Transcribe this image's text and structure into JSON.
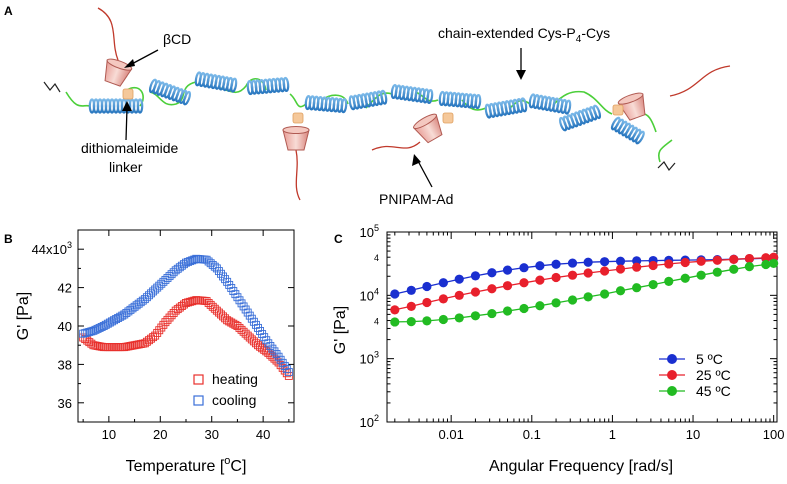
{
  "panel_a": {
    "letter": "A",
    "labels": {
      "bcd": "βCD",
      "chain_main": "chain-extended Cys-P",
      "chain_sub": "4",
      "chain_tail": "-Cys",
      "linker_1": "dithiomaleimide",
      "linker_2": "linker",
      "pnipam": "PNIPAM-Ad"
    }
  },
  "chart_data": [
    {
      "panel": "B",
      "type": "scatter",
      "title": "",
      "xlabel": "Temperature [",
      "xlabel_sup": "o",
      "xlabel_tail": "C]",
      "ylabel": "G' [Pa]",
      "xlim": [
        4,
        46
      ],
      "ylim": [
        35,
        45
      ],
      "x_ticks": [
        10,
        20,
        30,
        40
      ],
      "y_ticks": [
        {
          "v": 36,
          "label": "36"
        },
        {
          "v": 38,
          "label": "38"
        },
        {
          "v": 40,
          "label": "40"
        },
        {
          "v": 42,
          "label": "42"
        }
      ],
      "y_top_tick": {
        "v": 44,
        "label": "44x10",
        "sup": "3"
      },
      "legend_position": "bottom-right",
      "series": [
        {
          "name": "heating",
          "color": "#e8302c",
          "marker": "open-square",
          "x": [
            5,
            7,
            9,
            11,
            13,
            15,
            17,
            19,
            21,
            23,
            25,
            27,
            29,
            31,
            33,
            35,
            37,
            39,
            41,
            43,
            45
          ],
          "y": [
            39.4,
            39.0,
            38.9,
            38.9,
            38.9,
            39.0,
            39.1,
            39.5,
            40.2,
            40.8,
            41.2,
            41.35,
            41.3,
            40.8,
            40.3,
            40.0,
            39.5,
            39.0,
            38.6,
            38.1,
            37.4
          ]
        },
        {
          "name": "cooling",
          "color": "#3a6fd8",
          "marker": "open-square",
          "x": [
            5,
            7,
            9,
            11,
            13,
            15,
            17,
            19,
            21,
            23,
            25,
            27,
            29,
            31,
            33,
            35,
            37,
            39,
            41,
            43,
            45
          ],
          "y": [
            39.6,
            39.75,
            40.0,
            40.3,
            40.6,
            41.0,
            41.4,
            41.9,
            42.4,
            42.9,
            43.3,
            43.5,
            43.45,
            43.0,
            42.3,
            41.5,
            40.7,
            39.9,
            39.1,
            38.4,
            37.6
          ]
        }
      ]
    },
    {
      "panel": "C",
      "type": "line",
      "title": "",
      "xlabel": "Angular Frequency [rad/s]",
      "ylabel": "G' [Pa]",
      "xscale": "log",
      "yscale": "log",
      "xlim": [
        0.0016,
        110
      ],
      "ylim": [
        100,
        100000
      ],
      "x_ticks": [
        {
          "v": 0.01,
          "label": "0.01"
        },
        {
          "v": 0.1,
          "label": "0.1"
        },
        {
          "v": 1,
          "label": "1"
        },
        {
          "v": 10,
          "label": "10"
        },
        {
          "v": 100,
          "label": "100"
        }
      ],
      "y_ticks": [
        {
          "v": 100,
          "base": "10",
          "exp": "2"
        },
        {
          "v": 1000,
          "base": "10",
          "exp": "3"
        },
        {
          "v": 10000,
          "base": "10",
          "exp": "4"
        },
        {
          "v": 100000,
          "base": "10",
          "exp": "5"
        }
      ],
      "y_minor_labels": [
        {
          "v": 4000,
          "label": "4"
        },
        {
          "v": 40000,
          "label": "4"
        }
      ],
      "legend_position": "center-right",
      "series": [
        {
          "name": "5 ºC",
          "color": "#1a2fd0",
          "x": [
            0.002,
            0.0032,
            0.005,
            0.008,
            0.0126,
            0.02,
            0.032,
            0.05,
            0.08,
            0.126,
            0.2,
            0.32,
            0.5,
            0.8,
            1.26,
            2,
            3.2,
            5,
            8,
            12.6,
            20,
            32,
            50,
            80,
            100
          ],
          "y": [
            10500,
            12000,
            13800,
            15800,
            18000,
            20300,
            22700,
            25000,
            27300,
            29300,
            31000,
            32300,
            33300,
            34000,
            34600,
            35000,
            35400,
            35700,
            36000,
            36300,
            36700,
            37200,
            37800,
            38500,
            39000
          ]
        },
        {
          "name": "25 ºC",
          "color": "#e8202c",
          "x": [
            0.002,
            0.0032,
            0.005,
            0.008,
            0.0126,
            0.02,
            0.032,
            0.05,
            0.08,
            0.126,
            0.2,
            0.32,
            0.5,
            0.8,
            1.26,
            2,
            3.2,
            5,
            8,
            12.6,
            20,
            32,
            50,
            80,
            100
          ],
          "y": [
            5900,
            6700,
            7700,
            8800,
            10000,
            11300,
            12700,
            14200,
            15800,
            17400,
            19100,
            20800,
            22500,
            24200,
            26000,
            27800,
            29600,
            31300,
            33000,
            34500,
            35800,
            37000,
            38100,
            39200,
            40000
          ]
        },
        {
          "name": "45 ºC",
          "color": "#22bb22",
          "x": [
            0.002,
            0.0032,
            0.005,
            0.008,
            0.0126,
            0.02,
            0.032,
            0.05,
            0.08,
            0.126,
            0.2,
            0.32,
            0.5,
            0.8,
            1.26,
            2,
            3.2,
            5,
            8,
            12.6,
            20,
            32,
            50,
            80,
            100
          ],
          "y": [
            3800,
            3850,
            3950,
            4150,
            4400,
            4750,
            5150,
            5650,
            6200,
            6850,
            7600,
            8450,
            9450,
            10500,
            11800,
            13200,
            14800,
            16600,
            18600,
            20800,
            23200,
            25800,
            28400,
            30700,
            32000
          ]
        }
      ]
    }
  ]
}
